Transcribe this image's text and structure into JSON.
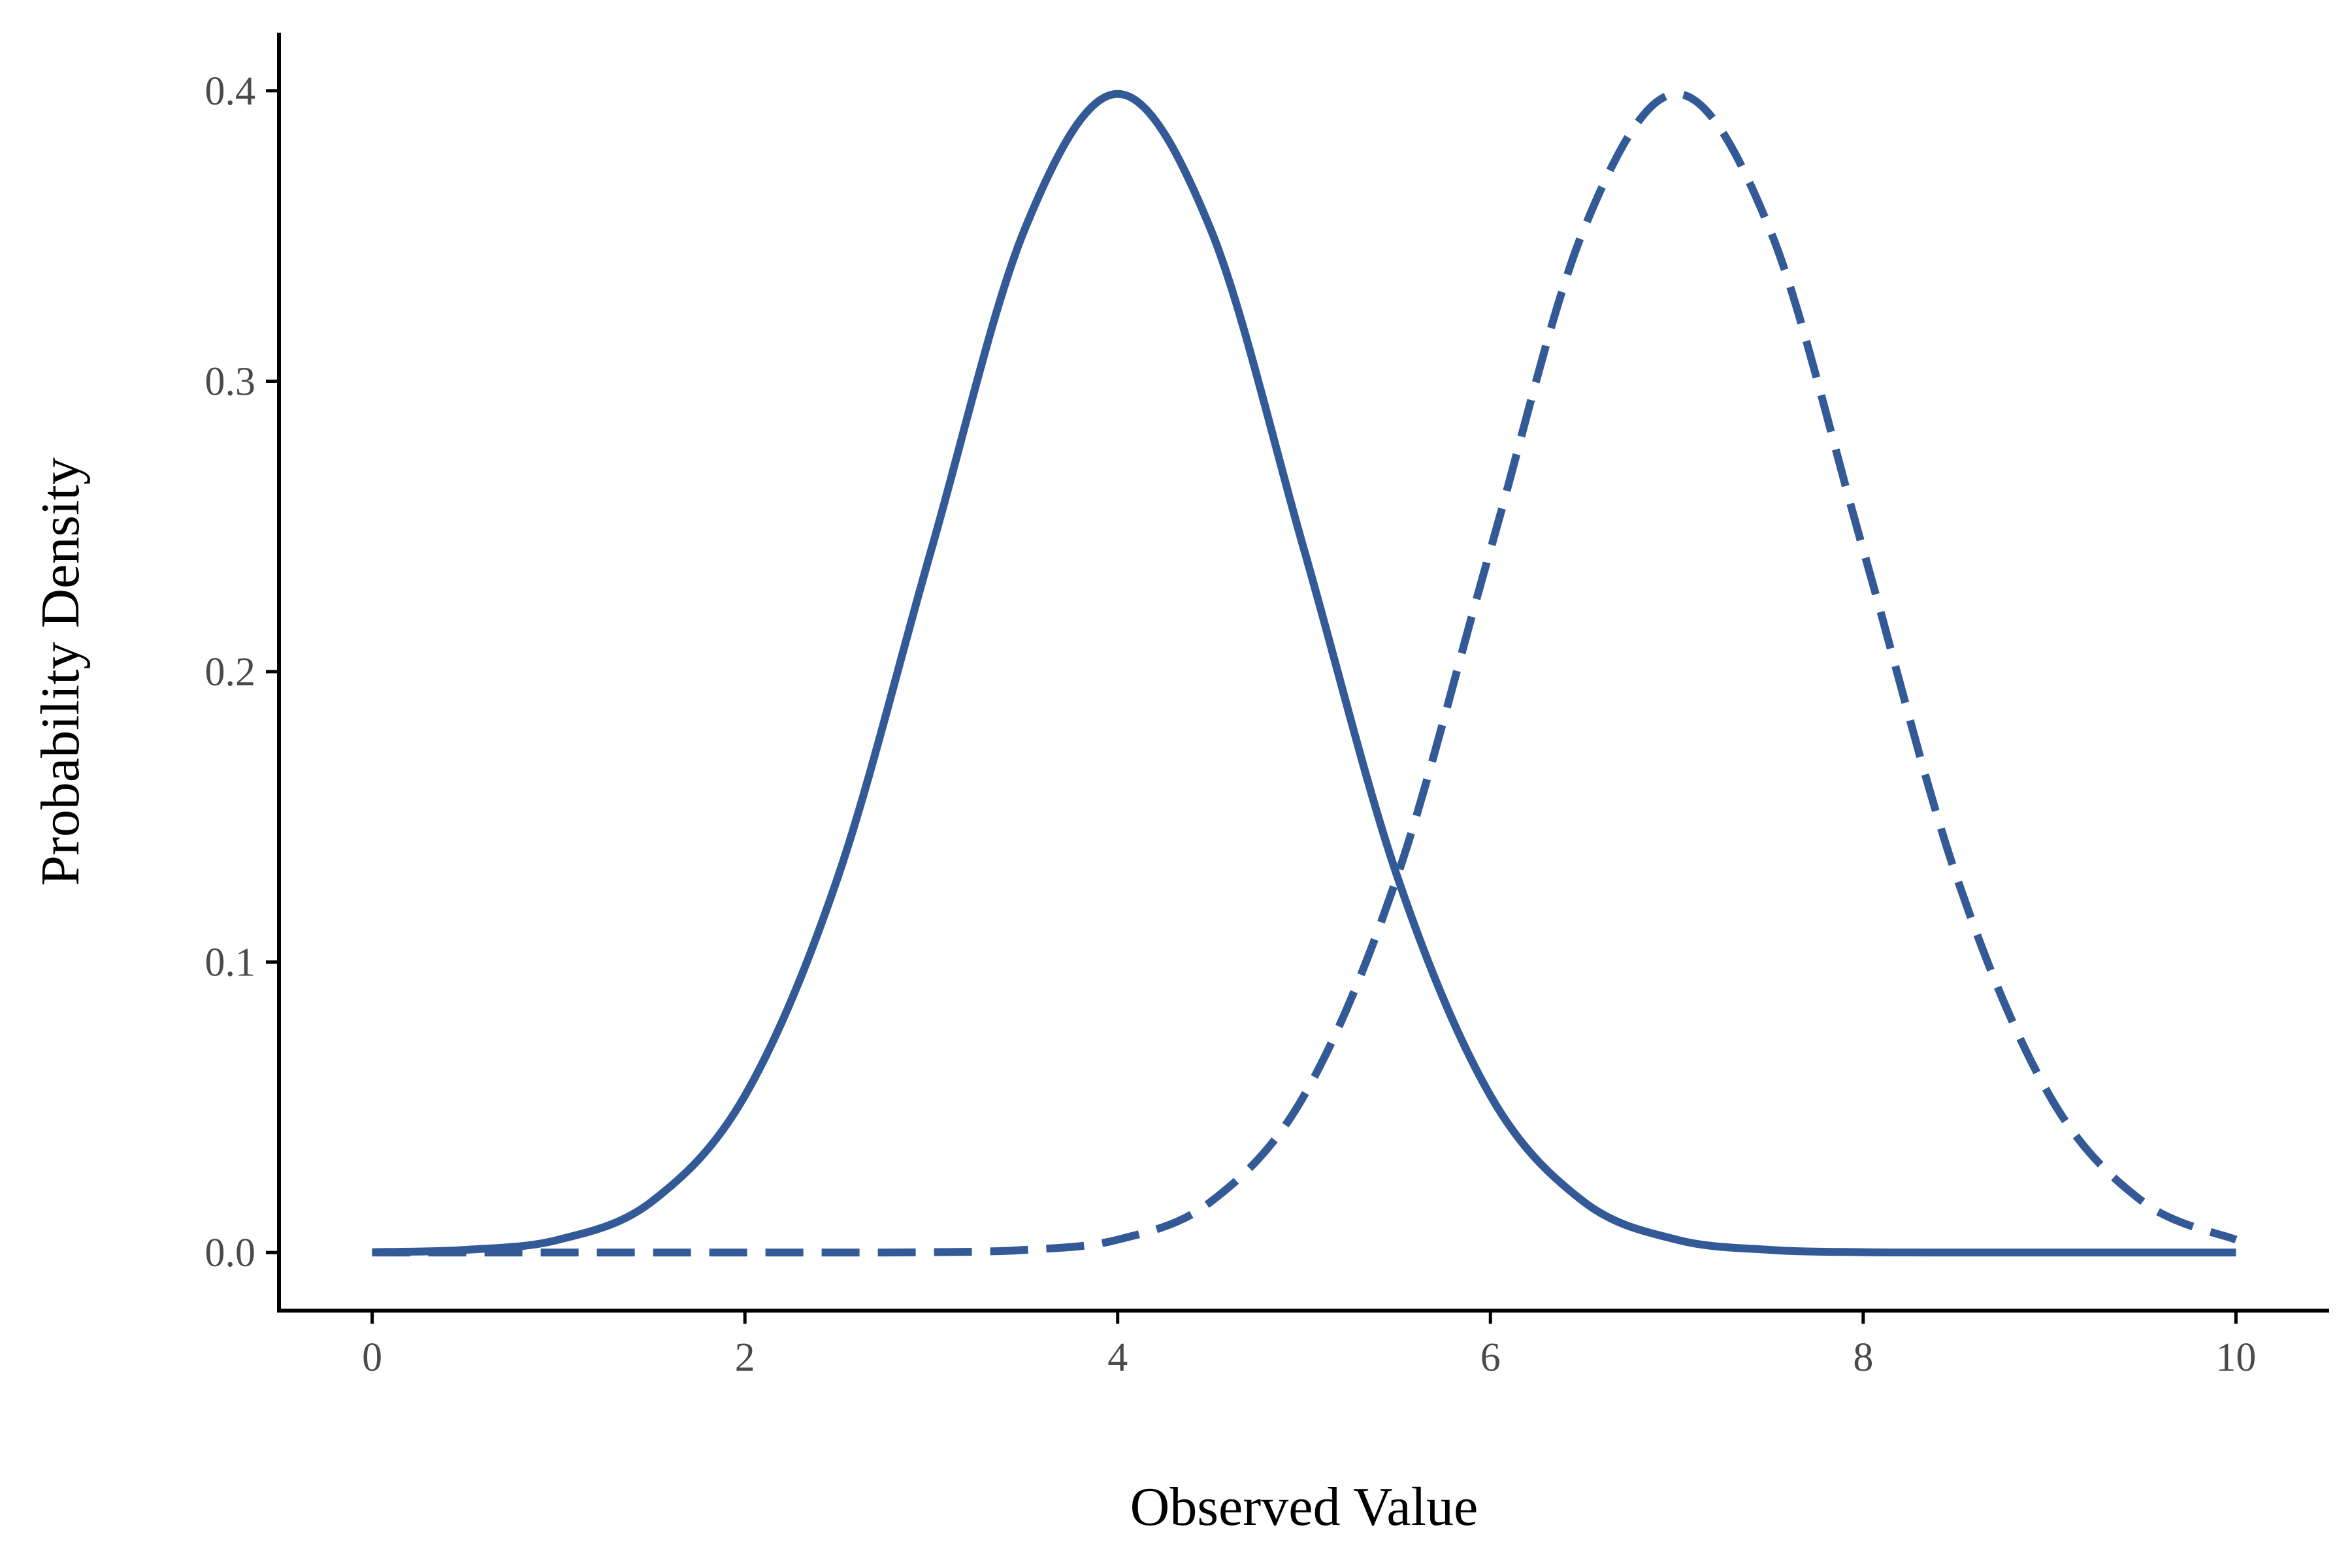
{
  "chart_data": {
    "type": "line",
    "title": "",
    "xlabel": "Observed Value",
    "ylabel": "Probability Density",
    "xlim": [
      -0.5,
      10.5
    ],
    "ylim": [
      -0.02,
      0.42
    ],
    "x_ticks": [
      0,
      2,
      4,
      6,
      8,
      10
    ],
    "x_tick_labels": [
      "0",
      "2",
      "4",
      "6",
      "8",
      "10"
    ],
    "y_ticks": [
      0.0,
      0.1,
      0.2,
      0.3,
      0.4
    ],
    "y_tick_labels": [
      "0.0",
      "0.1",
      "0.2",
      "0.3",
      "0.4"
    ],
    "grid": false,
    "legend": "none",
    "colors": {
      "series": "#335a97"
    },
    "x": [
      0,
      0.5,
      1,
      1.5,
      2,
      2.5,
      3,
      3.5,
      4,
      4.5,
      5,
      5.5,
      6,
      6.5,
      7,
      7.5,
      8,
      8.5,
      9,
      9.5,
      10
    ],
    "series": [
      {
        "line_style": "solid",
        "values": [
          0.0001,
          0.0009,
          0.0044,
          0.0175,
          0.054,
          0.1295,
          0.242,
          0.3521,
          0.3989,
          0.3521,
          0.242,
          0.1295,
          0.054,
          0.0175,
          0.0044,
          0.0009,
          0.0001,
          0.0,
          0.0,
          0.0,
          0.0
        ]
      },
      {
        "line_style": "dashed",
        "values": [
          0.0,
          0.0,
          0.0,
          0.0,
          0.0,
          0.0,
          0.0001,
          0.0009,
          0.0044,
          0.0175,
          0.054,
          0.1295,
          0.242,
          0.3521,
          0.3989,
          0.3521,
          0.242,
          0.1295,
          0.054,
          0.0175,
          0.0044
        ]
      }
    ]
  }
}
